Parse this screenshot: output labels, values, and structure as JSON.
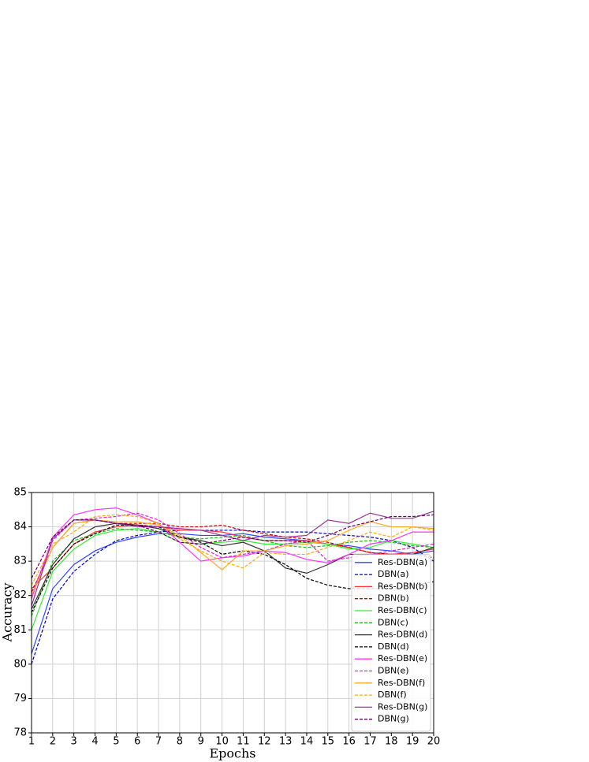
{
  "chart_data": {
    "type": "line",
    "x": [
      1,
      2,
      3,
      4,
      5,
      6,
      7,
      8,
      9,
      10,
      11,
      12,
      13,
      14,
      15,
      16,
      17,
      18,
      19,
      20
    ],
    "xlabel": "Epochs",
    "ylabel": "Accuracy",
    "xlim": [
      1,
      20
    ],
    "ylim": [
      78,
      85
    ],
    "xticks": [
      1,
      2,
      3,
      4,
      5,
      6,
      7,
      8,
      9,
      10,
      11,
      12,
      13,
      14,
      15,
      16,
      17,
      18,
      19,
      20
    ],
    "yticks": [
      78,
      79,
      80,
      81,
      82,
      83,
      84,
      85
    ],
    "grid": true,
    "legend_position": "lower right",
    "series": [
      {
        "name": "Res-DBN(a)",
        "color": "#3344ff",
        "line_style": "solid",
        "values": [
          80.3,
          82.2,
          82.9,
          83.3,
          83.55,
          83.7,
          83.8,
          83.8,
          83.75,
          83.75,
          83.8,
          83.7,
          83.65,
          83.6,
          83.5,
          83.45,
          83.35,
          83.3,
          83.2,
          83.3
        ]
      },
      {
        "name": "DBN(a)",
        "color": "#0000cc",
        "line_style": "dashed",
        "values": [
          80.0,
          81.9,
          82.7,
          83.2,
          83.6,
          83.75,
          83.85,
          83.9,
          83.9,
          83.9,
          83.9,
          83.85,
          83.85,
          83.85,
          83.8,
          83.75,
          83.7,
          83.6,
          83.4,
          83.0
        ]
      },
      {
        "name": "Res-DBN(b)",
        "color": "#ff3333",
        "line_style": "solid",
        "values": [
          82.2,
          82.8,
          83.5,
          83.85,
          84.0,
          84.05,
          84.0,
          83.9,
          83.9,
          83.85,
          83.7,
          83.6,
          83.6,
          83.6,
          83.5,
          83.4,
          83.25,
          83.2,
          83.25,
          83.35
        ]
      },
      {
        "name": "DBN(b)",
        "color": "#cc0000",
        "line_style": "dashed",
        "values": [
          82.1,
          83.4,
          84.1,
          84.2,
          84.1,
          84.1,
          84.1,
          84.0,
          84.0,
          84.05,
          83.9,
          83.8,
          83.7,
          83.65,
          83.55,
          83.4,
          83.25,
          83.2,
          83.2,
          83.1
        ]
      },
      {
        "name": "Res-DBN(c)",
        "color": "#33ee33",
        "line_style": "solid",
        "values": [
          81.0,
          82.7,
          83.35,
          83.75,
          83.9,
          83.95,
          83.85,
          83.55,
          83.5,
          83.55,
          83.6,
          83.5,
          83.5,
          83.55,
          83.5,
          83.35,
          83.4,
          83.6,
          83.5,
          83.4
        ]
      },
      {
        "name": "DBN(c)",
        "color": "#22bb22",
        "line_style": "dashed",
        "values": [
          81.4,
          83.0,
          83.6,
          83.8,
          83.95,
          83.9,
          83.85,
          83.7,
          83.65,
          83.7,
          83.75,
          83.6,
          83.45,
          83.4,
          83.45,
          83.55,
          83.6,
          83.55,
          83.45,
          83.4
        ]
      },
      {
        "name": "Res-DBN(d)",
        "color": "#333333",
        "line_style": "solid",
        "values": [
          81.6,
          82.9,
          83.65,
          84.0,
          84.1,
          84.05,
          83.95,
          83.7,
          83.6,
          83.45,
          83.55,
          83.3,
          82.8,
          82.65,
          82.9,
          83.2,
          83.2,
          83.2,
          83.2,
          83.4
        ]
      },
      {
        "name": "DBN(d)",
        "color": "#000000",
        "line_style": "dashed",
        "values": [
          81.5,
          82.8,
          83.5,
          83.8,
          84.05,
          84.05,
          84.0,
          83.7,
          83.55,
          83.2,
          83.3,
          83.2,
          82.9,
          82.5,
          82.3,
          82.2,
          82.2,
          82.2,
          82.3,
          82.4
        ]
      },
      {
        "name": "Res-DBN(e)",
        "color": "#ff33ff",
        "line_style": "solid",
        "values": [
          81.9,
          83.7,
          84.35,
          84.5,
          84.55,
          84.35,
          84.1,
          83.55,
          83.0,
          83.1,
          83.15,
          83.3,
          83.25,
          83.05,
          82.95,
          83.2,
          83.5,
          83.6,
          83.85,
          83.85
        ]
      },
      {
        "name": "DBN(e)",
        "color": "#dd22dd",
        "line_style": "dashed",
        "values": [
          82.0,
          83.6,
          84.2,
          84.25,
          84.3,
          84.4,
          84.2,
          83.8,
          83.4,
          83.1,
          83.2,
          83.3,
          83.5,
          83.6,
          83.0,
          83.1,
          83.2,
          83.3,
          83.4,
          83.5
        ]
      },
      {
        "name": "Res-DBN(f)",
        "color": "#ffaa22",
        "line_style": "solid",
        "values": [
          82.0,
          83.4,
          84.1,
          84.2,
          84.15,
          84.15,
          84.05,
          83.75,
          83.25,
          82.75,
          83.3,
          83.3,
          83.45,
          83.5,
          83.6,
          83.9,
          84.15,
          84.0,
          84.0,
          83.95
        ]
      },
      {
        "name": "DBN(f)",
        "color": "#ffaa00",
        "line_style": "dashed",
        "values": [
          82.3,
          83.5,
          83.85,
          84.3,
          84.35,
          84.3,
          84.1,
          83.65,
          83.3,
          83.0,
          82.8,
          83.25,
          83.2,
          83.2,
          83.4,
          83.6,
          83.85,
          83.7,
          84.0,
          83.9
        ]
      },
      {
        "name": "Res-DBN(g)",
        "color": "#993399",
        "line_style": "solid",
        "values": [
          81.7,
          83.65,
          84.2,
          84.2,
          84.1,
          84.0,
          84.0,
          83.95,
          83.9,
          83.75,
          83.6,
          83.75,
          83.7,
          83.75,
          84.2,
          84.1,
          84.4,
          84.25,
          84.25,
          84.45
        ]
      },
      {
        "name": "DBN(g)",
        "color": "#660066",
        "line_style": "dashed",
        "values": [
          82.5,
          83.7,
          84.2,
          84.2,
          84.1,
          84.05,
          83.85,
          83.55,
          83.5,
          83.6,
          83.7,
          83.6,
          83.6,
          83.55,
          83.75,
          84.0,
          84.15,
          84.3,
          84.3,
          84.35
        ]
      }
    ]
  }
}
